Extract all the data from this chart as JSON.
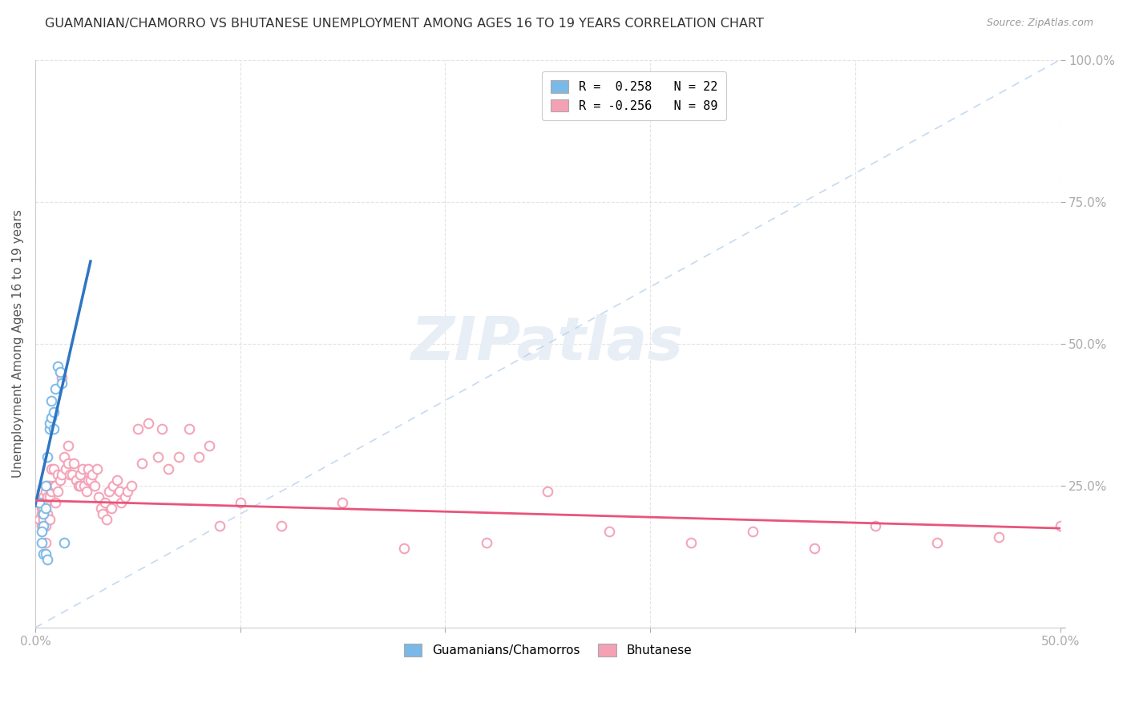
{
  "title": "GUAMANIAN/CHAMORRO VS BHUTANESE UNEMPLOYMENT AMONG AGES 16 TO 19 YEARS CORRELATION CHART",
  "source": "Source: ZipAtlas.com",
  "ylabel": "Unemployment Among Ages 16 to 19 years",
  "xlim": [
    0.0,
    0.5
  ],
  "ylim": [
    0.0,
    1.0
  ],
  "legend_r1": "R =  0.258   N = 22",
  "legend_r2": "R = -0.256   N = 89",
  "blue_color": "#7ab8e8",
  "pink_color": "#f4a0b5",
  "blue_line_color": "#2e75c3",
  "pink_line_color": "#e8547a",
  "dash_color": "#b8d0ec",
  "watermark_color": "#e8eef5",
  "guam_x": [
    0.002,
    0.004,
    0.004,
    0.005,
    0.005,
    0.006,
    0.007,
    0.007,
    0.008,
    0.008,
    0.009,
    0.009,
    0.01,
    0.011,
    0.012,
    0.013,
    0.014,
    0.003,
    0.003,
    0.004,
    0.005,
    0.006
  ],
  "guam_y": [
    0.22,
    0.2,
    0.18,
    0.25,
    0.21,
    0.3,
    0.35,
    0.36,
    0.37,
    0.4,
    0.35,
    0.38,
    0.42,
    0.46,
    0.45,
    0.43,
    0.15,
    0.17,
    0.15,
    0.13,
    0.13,
    0.12
  ],
  "bhutan_x": [
    0.002,
    0.002,
    0.003,
    0.003,
    0.003,
    0.003,
    0.004,
    0.004,
    0.004,
    0.005,
    0.005,
    0.005,
    0.005,
    0.006,
    0.006,
    0.006,
    0.007,
    0.007,
    0.007,
    0.008,
    0.008,
    0.009,
    0.009,
    0.01,
    0.01,
    0.011,
    0.011,
    0.012,
    0.013,
    0.013,
    0.014,
    0.015,
    0.016,
    0.016,
    0.017,
    0.018,
    0.019,
    0.02,
    0.021,
    0.022,
    0.022,
    0.023,
    0.024,
    0.025,
    0.026,
    0.026,
    0.027,
    0.028,
    0.029,
    0.03,
    0.031,
    0.032,
    0.033,
    0.034,
    0.035,
    0.036,
    0.037,
    0.038,
    0.04,
    0.041,
    0.042,
    0.044,
    0.045,
    0.047,
    0.05,
    0.052,
    0.055,
    0.06,
    0.062,
    0.065,
    0.07,
    0.075,
    0.08,
    0.085,
    0.09,
    0.1,
    0.12,
    0.15,
    0.18,
    0.22,
    0.25,
    0.28,
    0.32,
    0.35,
    0.38,
    0.41,
    0.44,
    0.47,
    0.5
  ],
  "bhutan_y": [
    0.22,
    0.19,
    0.2,
    0.18,
    0.24,
    0.21,
    0.23,
    0.21,
    0.19,
    0.24,
    0.22,
    0.18,
    0.15,
    0.25,
    0.23,
    0.2,
    0.25,
    0.23,
    0.19,
    0.28,
    0.24,
    0.28,
    0.25,
    0.22,
    0.25,
    0.27,
    0.24,
    0.26,
    0.44,
    0.27,
    0.3,
    0.28,
    0.29,
    0.32,
    0.27,
    0.27,
    0.29,
    0.26,
    0.25,
    0.27,
    0.25,
    0.28,
    0.25,
    0.24,
    0.28,
    0.26,
    0.26,
    0.27,
    0.25,
    0.28,
    0.23,
    0.21,
    0.2,
    0.22,
    0.19,
    0.24,
    0.21,
    0.25,
    0.26,
    0.24,
    0.22,
    0.23,
    0.24,
    0.25,
    0.35,
    0.29,
    0.36,
    0.3,
    0.35,
    0.28,
    0.3,
    0.35,
    0.3,
    0.32,
    0.18,
    0.22,
    0.18,
    0.22,
    0.14,
    0.15,
    0.24,
    0.17,
    0.15,
    0.17,
    0.14,
    0.18,
    0.15,
    0.16,
    0.18
  ],
  "blue_trendline_x": [
    0.0,
    0.027
  ],
  "blue_trendline_y": [
    0.215,
    0.645
  ],
  "pink_trendline_x": [
    0.0,
    0.5
  ],
  "pink_trendline_y": [
    0.224,
    0.175
  ]
}
